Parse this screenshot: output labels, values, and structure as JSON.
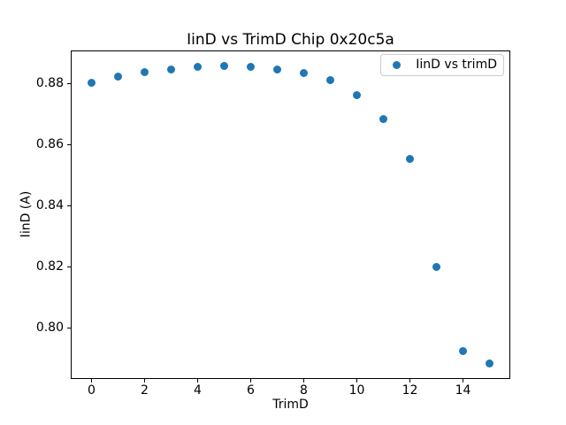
{
  "chart_data": {
    "type": "scatter",
    "title": "IinD vs TrimD Chip 0x20c5a",
    "xlabel": "TrimD",
    "ylabel": "IinD (A)",
    "legend": {
      "label": "IinD vs trimD",
      "position": "upper right"
    },
    "marker_color": "#1f77b4",
    "grid": false,
    "x": [
      0,
      1,
      2,
      3,
      4,
      5,
      6,
      7,
      8,
      9,
      10,
      11,
      12,
      13,
      14,
      15
    ],
    "y": [
      0.8802,
      0.8821,
      0.8837,
      0.8847,
      0.8853,
      0.8858,
      0.8854,
      0.8846,
      0.8834,
      0.8811,
      0.8762,
      0.8684,
      0.8554,
      0.82,
      0.7922,
      0.7884
    ],
    "xlim": [
      -0.75,
      15.75
    ],
    "ylim": [
      0.7835,
      0.8905
    ],
    "xticks": [
      0,
      2,
      4,
      6,
      8,
      10,
      12,
      14
    ],
    "yticks": [
      0.8,
      0.82,
      0.84,
      0.86,
      0.88
    ]
  }
}
